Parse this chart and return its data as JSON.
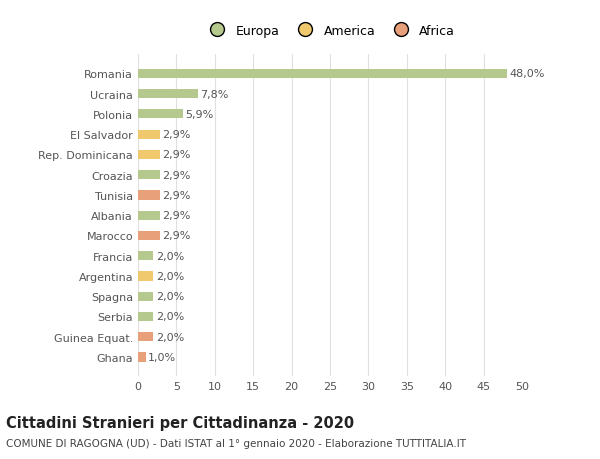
{
  "categories": [
    "Romania",
    "Ucraina",
    "Polonia",
    "El Salvador",
    "Rep. Dominicana",
    "Croazia",
    "Tunisia",
    "Albania",
    "Marocco",
    "Francia",
    "Argentina",
    "Spagna",
    "Serbia",
    "Guinea Equat.",
    "Ghana"
  ],
  "values": [
    48.0,
    7.8,
    5.9,
    2.9,
    2.9,
    2.9,
    2.9,
    2.9,
    2.9,
    2.0,
    2.0,
    2.0,
    2.0,
    2.0,
    1.0
  ],
  "colors": [
    "#b5c98e",
    "#b5c98e",
    "#b5c98e",
    "#f0c96e",
    "#f0c96e",
    "#b5c98e",
    "#e8a07a",
    "#b5c98e",
    "#e8a07a",
    "#b5c98e",
    "#f0c96e",
    "#b5c98e",
    "#b5c98e",
    "#e8a07a",
    "#e8a07a"
  ],
  "labels": [
    "48,0%",
    "7,8%",
    "5,9%",
    "2,9%",
    "2,9%",
    "2,9%",
    "2,9%",
    "2,9%",
    "2,9%",
    "2,0%",
    "2,0%",
    "2,0%",
    "2,0%",
    "2,0%",
    "1,0%"
  ],
  "legend": [
    {
      "label": "Europa",
      "color": "#b5c98e"
    },
    {
      "label": "America",
      "color": "#f0c96e"
    },
    {
      "label": "Africa",
      "color": "#e8a07a"
    }
  ],
  "title": "Cittadini Stranieri per Cittadinanza - 2020",
  "subtitle": "COMUNE DI RAGOGNA (UD) - Dati ISTAT al 1° gennaio 2020 - Elaborazione TUTTITALIA.IT",
  "xlim": [
    0,
    50
  ],
  "xticks": [
    0,
    5,
    10,
    15,
    20,
    25,
    30,
    35,
    40,
    45,
    50
  ],
  "background_color": "#ffffff",
  "grid_color": "#e0e0e0",
  "bar_height": 0.45,
  "label_fontsize": 8,
  "tick_fontsize": 8,
  "ytick_fontsize": 8,
  "title_fontsize": 10.5,
  "subtitle_fontsize": 7.5
}
